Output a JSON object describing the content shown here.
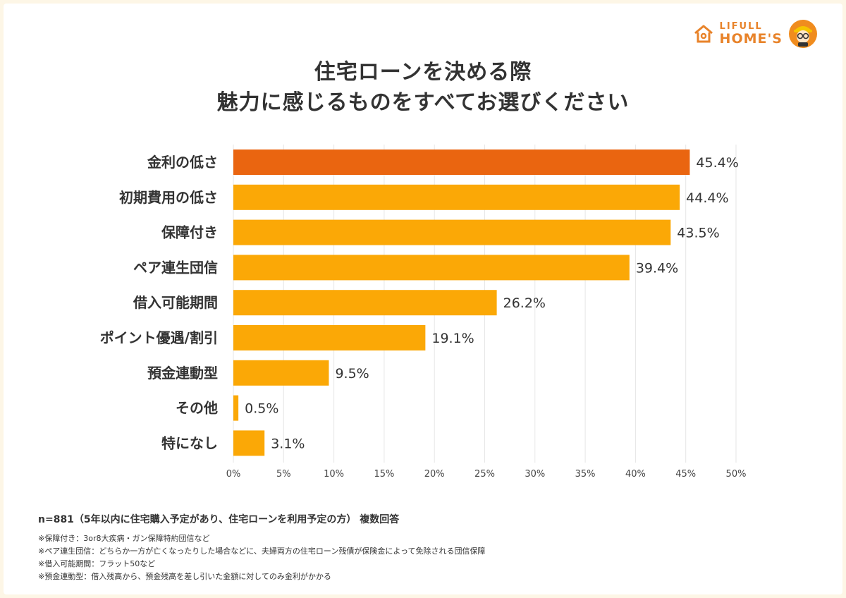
{
  "brand": {
    "line1": "LIFULL",
    "line2": "HOME'S",
    "color": "#e8832a"
  },
  "title": {
    "line1": "住宅ローンを決める際",
    "line2": "魅力に感じるものをすべてお選びください"
  },
  "chart_data": {
    "type": "bar",
    "orientation": "horizontal",
    "categories": [
      "金利の低さ",
      "初期費用の低さ",
      "保障付き",
      "ペア連生団信",
      "借入可能期間",
      "ポイント優遇/割引",
      "預金連動型",
      "その他",
      "特になし"
    ],
    "values": [
      45.4,
      44.4,
      43.5,
      39.4,
      26.2,
      19.1,
      9.5,
      0.5,
      3.1
    ],
    "value_labels": [
      "45.4%",
      "44.4%",
      "43.5%",
      "39.4%",
      "26.2%",
      "19.1%",
      "9.5%",
      "0.5%",
      "3.1%"
    ],
    "xlim": [
      0,
      50
    ],
    "x_ticks": [
      "0%",
      "5%",
      "10%",
      "15%",
      "20%",
      "25%",
      "30%",
      "35%",
      "40%",
      "45%",
      "50%"
    ],
    "grid": true,
    "colors": {
      "highlight": "#ea6510",
      "bar": "#fba806",
      "grid": "#e6e6e6"
    }
  },
  "footnotes": {
    "sample": "n=881（5年以内に住宅購入予定があり、住宅ローンを利用予定の方） 複数回答",
    "notes": [
      "※保障付き：3or8大疾病・ガン保障特約団信など",
      "※ペア連生団信：どちらか一方が亡くなったりした場合などに、夫婦両方の住宅ローン残債が保険金によって免除される団信保障",
      "※借入可能期間：フラット50など",
      "※預金連動型：借入残高から、預金残高を差し引いた金額に対してのみ金利がかかる"
    ]
  }
}
